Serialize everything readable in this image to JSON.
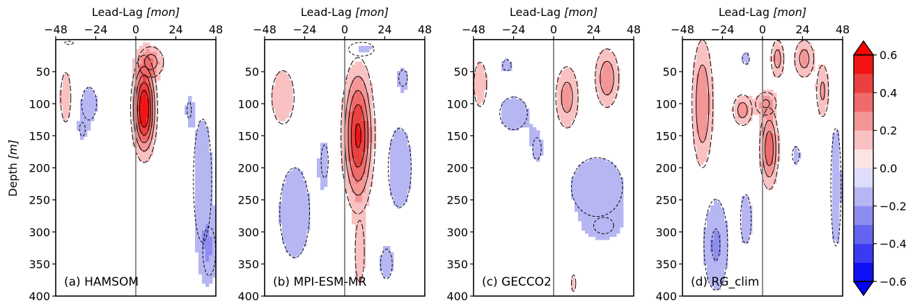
{
  "chart_data": [
    {
      "type": "heatmap",
      "panel_label": "(a) HAMSOM",
      "xlabel_main": "Lead-Lag ",
      "xlabel_unit": "[mon]",
      "ylabel_main": "Depth ",
      "ylabel_unit": "[m]",
      "x_ticks": [
        "−48",
        "−24",
        "0",
        "24",
        "48"
      ],
      "x_tick_values": [
        -48,
        -24,
        0,
        24,
        48
      ],
      "y_ticks": [
        "50",
        "100",
        "150",
        "200",
        "250",
        "300",
        "350",
        "400"
      ],
      "y_tick_values": [
        50,
        100,
        150,
        200,
        250,
        300,
        350,
        400
      ],
      "xlim": [
        -48,
        48
      ],
      "ylim": [
        400,
        0
      ],
      "blobs": [
        {
          "lag": 5,
          "depth": 108,
          "rlag": 6,
          "rdepth": 62,
          "amp": 0.62
        },
        {
          "lag": 9,
          "depth": 35,
          "rlag": 8,
          "rdepth": 25,
          "amp": 0.25
        },
        {
          "lag": -42,
          "depth": 90,
          "rlag": 4,
          "rdepth": 50,
          "amp": 0.18
        },
        {
          "lag": -28,
          "depth": 100,
          "rlag": 7,
          "rdepth": 40,
          "amp": -0.15
        },
        {
          "lag": -32,
          "depth": 140,
          "rlag": 4,
          "rdepth": 25,
          "amp": -0.12
        },
        {
          "lag": 40,
          "depth": 220,
          "rlag": 8,
          "rdepth": 140,
          "amp": -0.16
        },
        {
          "lag": 32,
          "depth": 110,
          "rlag": 3,
          "rdepth": 30,
          "amp": -0.12
        },
        {
          "lag": 44,
          "depth": 330,
          "rlag": 6,
          "rdepth": 60,
          "amp": -0.15
        },
        {
          "lag": -40,
          "depth": 5,
          "rlag": 6,
          "rdepth": 6,
          "amp": -0.12
        }
      ]
    },
    {
      "type": "heatmap",
      "panel_label": "(b) MPI-ESM-MR",
      "xlabel_main": "Lead-Lag ",
      "xlabel_unit": "[mon]",
      "x_ticks": [
        "−48",
        "−24",
        "0",
        "24",
        "48"
      ],
      "x_tick_values": [
        -48,
        -24,
        0,
        24,
        48
      ],
      "y_ticks": [
        "50",
        "100",
        "150",
        "200",
        "250",
        "300",
        "350",
        "400"
      ],
      "y_tick_values": [
        50,
        100,
        150,
        200,
        250,
        300,
        350,
        400
      ],
      "xlim": [
        -48,
        48
      ],
      "ylim": [
        400,
        0
      ],
      "blobs": [
        {
          "lag": 8,
          "depth": 150,
          "rlag": 8,
          "rdepth": 95,
          "amp": 0.52
        },
        {
          "lag": 9,
          "depth": 330,
          "rlag": 4,
          "rdepth": 70,
          "amp": 0.16
        },
        {
          "lag": -37,
          "depth": 90,
          "rlag": 8,
          "rdepth": 50,
          "amp": 0.2
        },
        {
          "lag": -30,
          "depth": 270,
          "rlag": 14,
          "rdepth": 110,
          "amp": -0.15
        },
        {
          "lag": 33,
          "depth": 200,
          "rlag": 10,
          "rdepth": 90,
          "amp": -0.16
        },
        {
          "lag": 10,
          "depth": 15,
          "rlag": 10,
          "rdepth": 14,
          "amp": -0.18
        },
        {
          "lag": 35,
          "depth": 60,
          "rlag": 6,
          "rdepth": 30,
          "amp": -0.12
        },
        {
          "lag": 25,
          "depth": 350,
          "rlag": 6,
          "rdepth": 40,
          "amp": -0.14
        },
        {
          "lag": -12,
          "depth": 190,
          "rlag": 5,
          "rdepth": 60,
          "amp": -0.12
        }
      ]
    },
    {
      "type": "heatmap",
      "panel_label": "(c) GECCO2",
      "xlabel_main": "Lead-Lag ",
      "xlabel_unit": "[mon]",
      "x_ticks": [
        "−48",
        "−24",
        "0",
        "24",
        "48"
      ],
      "x_tick_values": [
        -48,
        -24,
        0,
        24,
        48
      ],
      "y_ticks": [
        "50",
        "100",
        "150",
        "200",
        "250",
        "300",
        "350",
        "400"
      ],
      "y_tick_values": [
        50,
        100,
        150,
        200,
        250,
        300,
        350,
        400
      ],
      "xlim": [
        -48,
        48
      ],
      "ylim": [
        400,
        0
      ],
      "blobs": [
        {
          "lag": -44,
          "depth": 70,
          "rlag": 5,
          "rdepth": 45,
          "amp": 0.18
        },
        {
          "lag": 8,
          "depth": 90,
          "rlag": 7,
          "rdepth": 50,
          "amp": 0.25
        },
        {
          "lag": 32,
          "depth": 60,
          "rlag": 7,
          "rdepth": 45,
          "amp": 0.28
        },
        {
          "lag": -24,
          "depth": 115,
          "rlag": 13,
          "rdepth": 40,
          "amp": -0.15
        },
        {
          "lag": 26,
          "depth": 230,
          "rlag": 20,
          "rdepth": 60,
          "amp": -0.18
        },
        {
          "lag": 30,
          "depth": 290,
          "rlag": 14,
          "rdepth": 30,
          "amp": -0.12
        },
        {
          "lag": -10,
          "depth": 170,
          "rlag": 6,
          "rdepth": 40,
          "amp": -0.12
        },
        {
          "lag": -28,
          "depth": 40,
          "rlag": 6,
          "rdepth": 20,
          "amp": -0.12
        },
        {
          "lag": 12,
          "depth": 380,
          "rlag": 3,
          "rdepth": 30,
          "amp": 0.12
        }
      ]
    },
    {
      "type": "heatmap",
      "panel_label": "(d) RG_clim",
      "xlabel_main": "Lead-Lag ",
      "xlabel_unit": "[mon]",
      "x_ticks": [
        "−48",
        "−24",
        "0",
        "24",
        "48"
      ],
      "x_tick_values": [
        -48,
        -24,
        0,
        24,
        48
      ],
      "y_ticks": [
        "50",
        "100",
        "150",
        "200",
        "250",
        "300",
        "350",
        "400"
      ],
      "y_tick_values": [
        50,
        100,
        150,
        200,
        250,
        300,
        350,
        400
      ],
      "xlim": [
        -48,
        48
      ],
      "ylim": [
        400,
        0
      ],
      "blobs": [
        {
          "lag": -36,
          "depth": 100,
          "rlag": 6,
          "rdepth": 95,
          "amp": 0.3
        },
        {
          "lag": 4,
          "depth": 170,
          "rlag": 5,
          "rdepth": 55,
          "amp": 0.38
        },
        {
          "lag": -12,
          "depth": 110,
          "rlag": 6,
          "rdepth": 25,
          "amp": 0.25
        },
        {
          "lag": 2,
          "depth": 100,
          "rlag": 7,
          "rdepth": 20,
          "amp": 0.22
        },
        {
          "lag": 25,
          "depth": 30,
          "rlag": 6,
          "rdepth": 30,
          "amp": 0.25
        },
        {
          "lag": 36,
          "depth": 80,
          "rlag": 4,
          "rdepth": 45,
          "amp": 0.22
        },
        {
          "lag": 9,
          "depth": 30,
          "rlag": 4,
          "rdepth": 30,
          "amp": 0.25
        },
        {
          "lag": -28,
          "depth": 320,
          "rlag": 8,
          "rdepth": 80,
          "amp": -0.22
        },
        {
          "lag": -10,
          "depth": 280,
          "rlag": 5,
          "rdepth": 60,
          "amp": -0.15
        },
        {
          "lag": 44,
          "depth": 230,
          "rlag": 4,
          "rdepth": 120,
          "amp": -0.18
        },
        {
          "lag": 20,
          "depth": 180,
          "rlag": 5,
          "rdepth": 30,
          "amp": -0.12
        },
        {
          "lag": -10,
          "depth": 30,
          "rlag": 5,
          "rdepth": 20,
          "amp": -0.12
        }
      ]
    }
  ],
  "colorbar": {
    "levels": [
      -0.6,
      -0.5,
      -0.4,
      -0.3,
      -0.2,
      -0.1,
      0.0,
      0.1,
      0.2,
      0.3,
      0.4,
      0.5,
      0.6
    ],
    "tick_labels": [
      "0.6",
      "0.4",
      "0.2",
      "0.0",
      "−0.2",
      "−0.4",
      "−0.6"
    ],
    "tick_values": [
      0.6,
      0.4,
      0.2,
      0.0,
      -0.2,
      -0.4,
      -0.6
    ],
    "colors_low_to_high": [
      "#1010f5",
      "#3a3af3",
      "#6464f0",
      "#8d8df0",
      "#b6b6f3",
      "#dedefa",
      "#fde4e4",
      "#f9c1c1",
      "#f49696",
      "#ef6b6b",
      "#ea4040",
      "#f21414"
    ],
    "under_color": "#0000ff",
    "over_color": "#ff0000"
  },
  "colors": {
    "zero_line": "#8c8c8c",
    "contour": "#000000"
  }
}
